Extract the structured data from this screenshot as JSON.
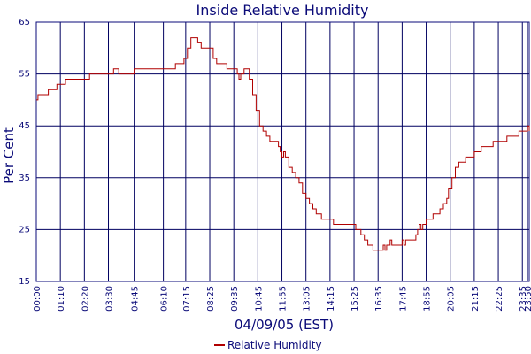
{
  "chart_data": {
    "type": "line",
    "title": "Inside Relative Humidity",
    "xlabel": "04/09/05 (EST)",
    "ylabel": "Per Cent",
    "ylim": [
      15,
      65
    ],
    "yticks": [
      15,
      25,
      35,
      45,
      55,
      65
    ],
    "xlim_minutes": [
      0,
      1435
    ],
    "xticks": [
      {
        "label": "00:00",
        "min": 0
      },
      {
        "label": "01:10",
        "min": 70
      },
      {
        "label": "02:20",
        "min": 140
      },
      {
        "label": "03:30",
        "min": 210
      },
      {
        "label": "04:45",
        "min": 285
      },
      {
        "label": "06:10",
        "min": 370
      },
      {
        "label": "07:15",
        "min": 435
      },
      {
        "label": "08:25",
        "min": 505
      },
      {
        "label": "09:35",
        "min": 575
      },
      {
        "label": "10:45",
        "min": 645
      },
      {
        "label": "11:55",
        "min": 715
      },
      {
        "label": "13:05",
        "min": 785
      },
      {
        "label": "14:15",
        "min": 855
      },
      {
        "label": "15:25",
        "min": 925
      },
      {
        "label": "16:35",
        "min": 995
      },
      {
        "label": "17:45",
        "min": 1065
      },
      {
        "label": "18:55",
        "min": 1135
      },
      {
        "label": "20:05",
        "min": 1205
      },
      {
        "label": "21:15",
        "min": 1275
      },
      {
        "label": "22:25",
        "min": 1345
      },
      {
        "label": "23:35",
        "min": 1415
      },
      {
        "label": "23:50",
        "min": 1430
      }
    ],
    "grid": true,
    "legend_position": "bottom-center",
    "series": [
      {
        "name": "Relative Humidity",
        "color": "#b00000",
        "points": [
          [
            "00:00",
            50
          ],
          [
            "00:05",
            51
          ],
          [
            "00:30",
            51
          ],
          [
            "00:35",
            52
          ],
          [
            "00:55",
            52
          ],
          [
            "01:00",
            53
          ],
          [
            "01:20",
            53
          ],
          [
            "01:25",
            54
          ],
          [
            "02:30",
            54
          ],
          [
            "02:35",
            55
          ],
          [
            "03:40",
            55
          ],
          [
            "03:45",
            56
          ],
          [
            "03:55",
            56
          ],
          [
            "04:00",
            55
          ],
          [
            "04:40",
            55
          ],
          [
            "04:45",
            56
          ],
          [
            "06:40",
            56
          ],
          [
            "06:45",
            57
          ],
          [
            "07:00",
            57
          ],
          [
            "07:10",
            58
          ],
          [
            "07:20",
            60
          ],
          [
            "07:30",
            62
          ],
          [
            "07:40",
            62
          ],
          [
            "07:50",
            61
          ],
          [
            "08:00",
            60
          ],
          [
            "08:20",
            60
          ],
          [
            "08:35",
            58
          ],
          [
            "08:45",
            57
          ],
          [
            "09:00",
            57
          ],
          [
            "09:15",
            56
          ],
          [
            "09:35",
            56
          ],
          [
            "09:45",
            55
          ],
          [
            "09:50",
            54
          ],
          [
            "09:55",
            55
          ],
          [
            "10:05",
            56
          ],
          [
            "10:10",
            56
          ],
          [
            "10:20",
            54
          ],
          [
            "10:30",
            51
          ],
          [
            "10:40",
            48
          ],
          [
            "10:50",
            45
          ],
          [
            "11:00",
            44
          ],
          [
            "11:10",
            43
          ],
          [
            "11:20",
            42
          ],
          [
            "11:35",
            42
          ],
          [
            "11:45",
            41
          ],
          [
            "11:50",
            40
          ],
          [
            "11:55",
            39
          ],
          [
            "12:00",
            40
          ],
          [
            "12:05",
            39
          ],
          [
            "12:15",
            37
          ],
          [
            "12:25",
            36
          ],
          [
            "12:35",
            35
          ],
          [
            "12:45",
            34
          ],
          [
            "12:55",
            32
          ],
          [
            "13:05",
            31
          ],
          [
            "13:15",
            30
          ],
          [
            "13:25",
            29
          ],
          [
            "13:35",
            28
          ],
          [
            "13:50",
            27
          ],
          [
            "14:20",
            27
          ],
          [
            "14:25",
            26
          ],
          [
            "15:25",
            26
          ],
          [
            "15:30",
            25
          ],
          [
            "15:40",
            25
          ],
          [
            "15:45",
            24
          ],
          [
            "15:55",
            23
          ],
          [
            "16:05",
            22
          ],
          [
            "16:15",
            22
          ],
          [
            "16:20",
            21
          ],
          [
            "16:45",
            21
          ],
          [
            "16:50",
            22
          ],
          [
            "16:55",
            21
          ],
          [
            "17:00",
            22
          ],
          [
            "17:05",
            22
          ],
          [
            "17:10",
            23
          ],
          [
            "17:15",
            22
          ],
          [
            "17:40",
            22
          ],
          [
            "17:45",
            23
          ],
          [
            "17:50",
            22
          ],
          [
            "17:55",
            23
          ],
          [
            "18:15",
            23
          ],
          [
            "18:25",
            24
          ],
          [
            "18:30",
            25
          ],
          [
            "18:35",
            26
          ],
          [
            "18:40",
            25
          ],
          [
            "18:45",
            26
          ],
          [
            "18:55",
            27
          ],
          [
            "19:10",
            27
          ],
          [
            "19:15",
            28
          ],
          [
            "19:25",
            28
          ],
          [
            "19:35",
            29
          ],
          [
            "19:45",
            30
          ],
          [
            "19:55",
            31
          ],
          [
            "20:00",
            33
          ],
          [
            "20:10",
            35
          ],
          [
            "20:20",
            37
          ],
          [
            "20:30",
            38
          ],
          [
            "20:40",
            38
          ],
          [
            "20:50",
            39
          ],
          [
            "21:10",
            39
          ],
          [
            "21:15",
            40
          ],
          [
            "21:30",
            40
          ],
          [
            "21:35",
            41
          ],
          [
            "22:05",
            41
          ],
          [
            "22:10",
            42
          ],
          [
            "22:45",
            42
          ],
          [
            "22:50",
            43
          ],
          [
            "23:20",
            43
          ],
          [
            "23:25",
            44
          ],
          [
            "23:45",
            44
          ],
          [
            "23:50",
            45
          ],
          [
            "23:55",
            44
          ]
        ]
      }
    ]
  },
  "colors": {
    "axis": "#0a0a78",
    "grid": "#000060",
    "series": "#b00000"
  }
}
